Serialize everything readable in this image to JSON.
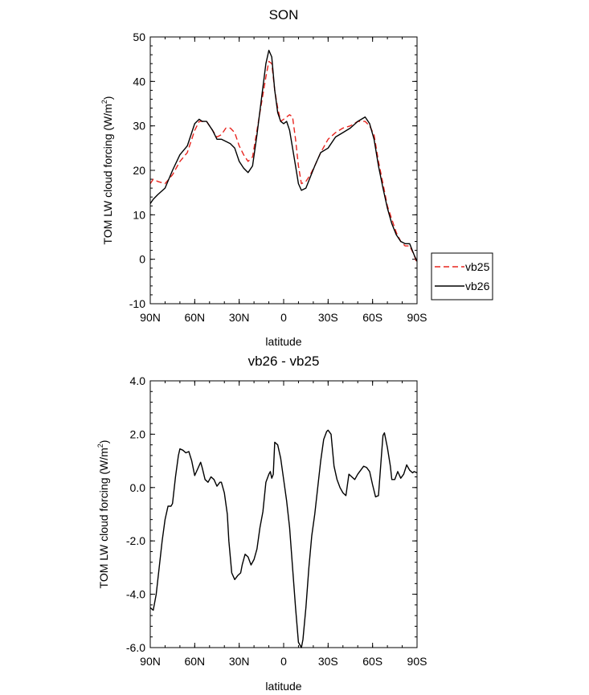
{
  "chart_data": [
    {
      "type": "line",
      "title": "SON",
      "xlabel": "latitude",
      "ylabel": "TOM LW cloud forcing (W/m",
      "ylabel_sup": "2",
      "ylabel_end": ")",
      "xlim": [
        90,
        -90
      ],
      "ylim": [
        -10,
        50
      ],
      "x_ticks": [
        {
          "value": 90,
          "label": "90N"
        },
        {
          "value": 60,
          "label": "60N"
        },
        {
          "value": 30,
          "label": "30N"
        },
        {
          "value": 0,
          "label": "0"
        },
        {
          "value": -30,
          "label": "30S"
        },
        {
          "value": -60,
          "label": "60S"
        },
        {
          "value": -90,
          "label": "90S"
        }
      ],
      "y_ticks": [
        {
          "value": 50,
          "label": "50"
        },
        {
          "value": 40,
          "label": "40"
        },
        {
          "value": 30,
          "label": "30"
        },
        {
          "value": 20,
          "label": "20"
        },
        {
          "value": 10,
          "label": "10"
        },
        {
          "value": 0,
          "label": "0"
        },
        {
          "value": -10,
          "label": "-10"
        }
      ],
      "legend_position": "right",
      "series": [
        {
          "name": "vb25",
          "color": "#e8251f",
          "dash": "dashed",
          "x": [
            90,
            88,
            85,
            80,
            75,
            70,
            65,
            60,
            57,
            55,
            52,
            48,
            45,
            42,
            39,
            36,
            33,
            30,
            27,
            24,
            21,
            18,
            15,
            12,
            10,
            8,
            6,
            4,
            2,
            0,
            -2,
            -4,
            -6,
            -8,
            -10,
            -12,
            -15,
            -18,
            -21,
            -25,
            -30,
            -35,
            -40,
            -45,
            -50,
            -55,
            -58,
            -61,
            -64,
            -67,
            -70,
            -73,
            -76,
            -79,
            -82,
            -85,
            -88,
            -90
          ],
          "y": [
            17,
            18,
            17.5,
            17,
            19,
            22,
            24,
            29,
            31,
            31,
            31,
            29,
            27.5,
            28,
            29.5,
            29.5,
            28.5,
            25.5,
            23.5,
            22,
            23,
            29,
            35,
            41,
            44.5,
            44,
            38,
            34,
            31,
            31.5,
            32,
            32.5,
            32,
            27,
            21,
            17,
            17.5,
            19,
            21,
            24,
            27,
            28.5,
            29.5,
            30,
            31,
            31,
            30,
            28,
            22,
            17,
            12,
            9,
            6,
            4,
            3,
            3,
            1,
            -1
          ]
        },
        {
          "name": "vb26",
          "color": "#000000",
          "dash": "solid",
          "x": [
            90,
            88,
            85,
            80,
            75,
            70,
            65,
            60,
            57,
            55,
            52,
            48,
            45,
            42,
            39,
            36,
            33,
            30,
            27,
            24,
            21,
            18,
            15,
            12,
            10,
            8,
            6,
            4,
            2,
            0,
            -2,
            -4,
            -6,
            -8,
            -10,
            -12,
            -15,
            -18,
            -21,
            -25,
            -30,
            -35,
            -40,
            -45,
            -50,
            -55,
            -58,
            -61,
            -64,
            -67,
            -70,
            -73,
            -76,
            -79,
            -82,
            -85,
            -88,
            -90
          ],
          "y": [
            12.5,
            13.5,
            14.5,
            16,
            20,
            23.5,
            25.5,
            30.5,
            31.5,
            31,
            31,
            29,
            27,
            27,
            26.5,
            26,
            25,
            22,
            20.5,
            19.5,
            21,
            28,
            36,
            44,
            47,
            45.5,
            38,
            33,
            31,
            30.5,
            31,
            29,
            25,
            21,
            17,
            15.5,
            16,
            18.5,
            21,
            24,
            25,
            27.5,
            28.5,
            29.5,
            31,
            32,
            30.5,
            27,
            21,
            16,
            11.5,
            8,
            5.5,
            4,
            3.5,
            3.5,
            1,
            -0.5
          ]
        }
      ]
    },
    {
      "type": "line",
      "title": "vb26 - vb25",
      "xlabel": "latitude",
      "ylabel": "TOM LW cloud forcing (W/m",
      "ylabel_sup": "2",
      "ylabel_end": ")",
      "xlim": [
        90,
        -90
      ],
      "ylim": [
        -6,
        4
      ],
      "x_ticks": [
        {
          "value": 90,
          "label": "90N"
        },
        {
          "value": 60,
          "label": "60N"
        },
        {
          "value": 30,
          "label": "30N"
        },
        {
          "value": 0,
          "label": "0"
        },
        {
          "value": -30,
          "label": "30S"
        },
        {
          "value": -60,
          "label": "60S"
        },
        {
          "value": -90,
          "label": "90S"
        }
      ],
      "y_ticks": [
        {
          "value": 4,
          "label": "4.0"
        },
        {
          "value": 2,
          "label": "2.0"
        },
        {
          "value": 0,
          "label": "0.0"
        },
        {
          "value": -2,
          "label": "-2.0"
        },
        {
          "value": -4,
          "label": "-4.0"
        },
        {
          "value": -6,
          "label": "-6.0"
        }
      ],
      "series": [
        {
          "color": "#000000",
          "dash": "solid",
          "x": [
            90,
            89,
            88,
            86,
            84,
            82,
            80,
            78,
            76,
            75,
            73,
            71,
            70,
            68,
            66,
            64,
            62,
            60,
            58,
            56,
            55,
            53,
            51,
            49,
            47,
            45,
            43,
            42,
            40,
            38,
            37,
            35,
            33,
            31,
            29,
            28,
            26,
            24,
            22,
            20,
            18,
            16,
            14,
            12,
            10,
            9,
            8,
            7,
            6,
            4,
            2,
            0,
            -2,
            -4,
            -6,
            -8,
            -10,
            -12,
            -13,
            -15,
            -17,
            -19,
            -21,
            -23,
            -25,
            -27,
            -29,
            -30,
            -32,
            -34,
            -36,
            -38,
            -40,
            -42,
            -44,
            -46,
            -48,
            -50,
            -52,
            -54,
            -56,
            -58,
            -60,
            -62,
            -64,
            -66,
            -67,
            -68,
            -70,
            -72,
            -73,
            -75,
            -77,
            -79,
            -81,
            -83,
            -85,
            -87,
            -88,
            -90
          ],
          "y": [
            -4.5,
            -4.55,
            -4.6,
            -4,
            -3,
            -2,
            -1.2,
            -0.7,
            -0.7,
            -0.6,
            0.4,
            1.2,
            1.45,
            1.4,
            1.3,
            1.35,
            1,
            0.45,
            0.7,
            0.95,
            0.75,
            0.3,
            0.2,
            0.4,
            0.3,
            0.05,
            0.2,
            0.2,
            -0.2,
            -1,
            -2,
            -3.2,
            -3.45,
            -3.3,
            -3.2,
            -2.9,
            -2.5,
            -2.6,
            -2.9,
            -2.7,
            -2.3,
            -1.5,
            -0.9,
            0.2,
            0.5,
            0.6,
            0.35,
            0.5,
            1.7,
            1.6,
            1.1,
            0.3,
            -0.5,
            -1.5,
            -3,
            -4.5,
            -5.8,
            -6,
            -5.7,
            -4.5,
            -3,
            -1.8,
            -1,
            0,
            1,
            1.8,
            2.1,
            2.15,
            2,
            0.8,
            0.3,
            0,
            -0.2,
            -0.3,
            0.5,
            0.4,
            0.3,
            0.5,
            0.65,
            0.8,
            0.75,
            0.6,
            0.1,
            -0.35,
            -0.3,
            1.2,
            1.95,
            2.05,
            1.5,
            0.8,
            0.3,
            0.3,
            0.6,
            0.35,
            0.5,
            0.85,
            0.65,
            0.55,
            0.6,
            0.55
          ]
        }
      ]
    }
  ]
}
